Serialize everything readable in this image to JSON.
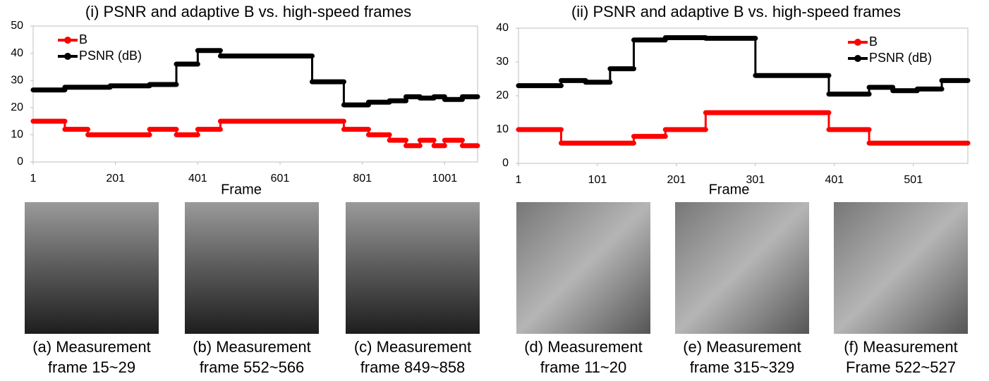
{
  "chart_data": [
    {
      "type": "step",
      "title": "(i) PSNR and adaptive B vs. high-speed frames",
      "x_label": "Frame",
      "xlim": [
        1,
        1081
      ],
      "xticks": [
        1,
        201,
        401,
        601,
        801,
        1001
      ],
      "ylim": [
        0,
        50
      ],
      "yticks": [
        0,
        10,
        20,
        30,
        40,
        50
      ],
      "legend": "upper left",
      "series": [
        {
          "name": "B",
          "color": "#ff0000",
          "x": [
            1,
            78,
            134,
            284,
            349,
            401,
            456,
            756,
            816,
            867,
            907,
            941,
            975,
            1001,
            1044,
            1081
          ],
          "values": [
            15,
            12,
            10,
            12,
            10,
            12,
            15,
            12,
            10,
            8,
            6,
            8,
            6,
            8,
            6,
            6
          ]
        },
        {
          "name": "PSNR (dB)",
          "color": "#000000",
          "x": [
            1,
            78,
            188,
            284,
            349,
            401,
            456,
            679,
            756,
            816,
            867,
            907,
            941,
            975,
            1001,
            1044,
            1081
          ],
          "values": [
            26.5,
            27.5,
            28,
            28.5,
            36,
            41,
            39,
            29.5,
            21,
            22,
            22.5,
            24,
            23.5,
            24,
            23,
            24,
            24
          ]
        }
      ]
    },
    {
      "type": "step",
      "title": "(ii) PSNR and adaptive B vs. high-speed frames",
      "x_label": "Frame",
      "xlim": [
        1,
        570
      ],
      "xticks": [
        1,
        101,
        201,
        301,
        401,
        501
      ],
      "ylim": [
        0,
        40
      ],
      "yticks": [
        0,
        10,
        20,
        30,
        40
      ],
      "legend": "upper right",
      "series": [
        {
          "name": "B",
          "color": "#ff0000",
          "x": [
            1,
            55,
            147,
            187,
            238,
            394,
            445,
            570
          ],
          "values": [
            10,
            6,
            8,
            10,
            15,
            10,
            6,
            6
          ]
        },
        {
          "name": "PSNR (dB)",
          "color": "#000000",
          "x": [
            1,
            55,
            86,
            117,
            147,
            187,
            238,
            301,
            394,
            445,
            475,
            506,
            537,
            570
          ],
          "values": [
            23,
            24.5,
            24,
            28,
            36.5,
            37.2,
            37,
            26,
            20.5,
            22.5,
            21.5,
            22,
            24.5,
            24.5
          ]
        }
      ]
    }
  ],
  "panels": [
    {
      "caption": [
        "(a) Measurement",
        "frame 15~29"
      ]
    },
    {
      "caption": [
        "(b) Measurement",
        "frame 552~566"
      ]
    },
    {
      "caption": [
        "(c) Measurement",
        "frame 849~858"
      ]
    },
    {
      "caption": [
        "(d) Measurement",
        "frame 11~20"
      ]
    },
    {
      "caption": [
        "(e) Measurement",
        "frame 315~329"
      ]
    },
    {
      "caption": [
        "(f) Measurement",
        "Frame 522~527"
      ]
    }
  ]
}
